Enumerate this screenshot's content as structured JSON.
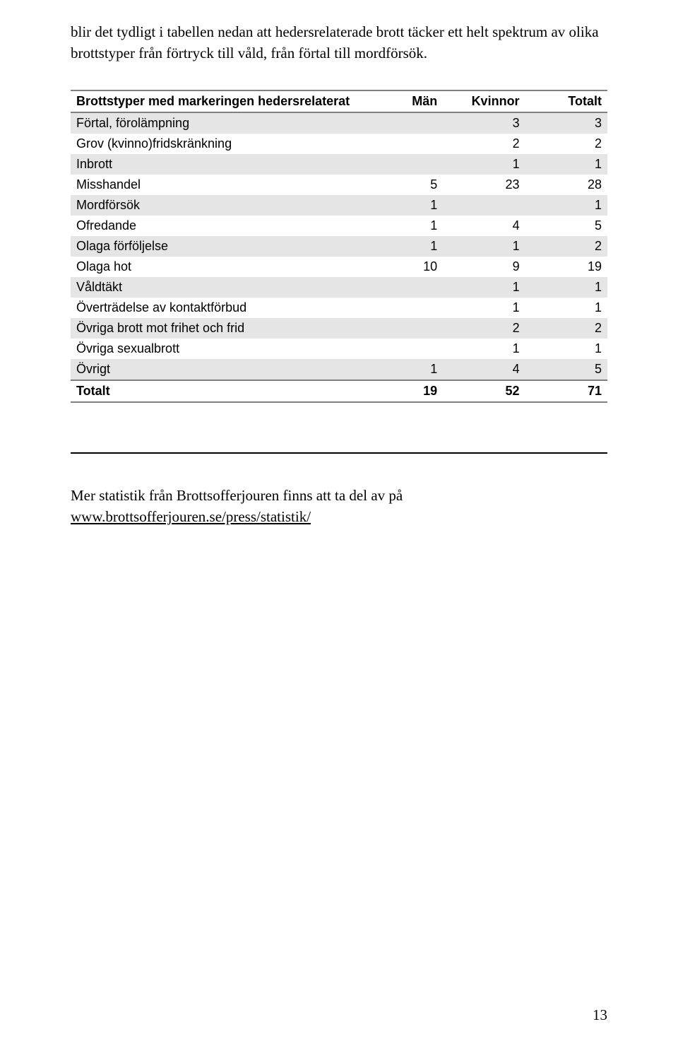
{
  "intro_text": "blir det tydligt i tabellen nedan att hedersrelaterade brott täcker ett helt spektrum av olika brottstyper från förtryck till våld, från förtal till mordförsök.",
  "table": {
    "type": "table",
    "header_label": "Brottstyper med markeringen hedersrelaterat",
    "columns": [
      "Män",
      "Kvinnor",
      "Totalt"
    ],
    "rows": [
      {
        "label": "Förtal, förolämpning",
        "man": "",
        "kvinnor": "3",
        "totalt": "3"
      },
      {
        "label": "Grov (kvinno)fridskränkning",
        "man": "",
        "kvinnor": "2",
        "totalt": "2"
      },
      {
        "label": "Inbrott",
        "man": "",
        "kvinnor": "1",
        "totalt": "1"
      },
      {
        "label": "Misshandel",
        "man": "5",
        "kvinnor": "23",
        "totalt": "28"
      },
      {
        "label": "Mordförsök",
        "man": "1",
        "kvinnor": "",
        "totalt": "1"
      },
      {
        "label": "Ofredande",
        "man": "1",
        "kvinnor": "4",
        "totalt": "5"
      },
      {
        "label": "Olaga förföljelse",
        "man": "1",
        "kvinnor": "1",
        "totalt": "2"
      },
      {
        "label": "Olaga hot",
        "man": "10",
        "kvinnor": "9",
        "totalt": "19"
      },
      {
        "label": "Våldtäkt",
        "man": "",
        "kvinnor": "1",
        "totalt": "1"
      },
      {
        "label": "Överträdelse av kontaktförbud",
        "man": "",
        "kvinnor": "1",
        "totalt": "1"
      },
      {
        "label": "Övriga brott mot frihet och frid",
        "man": "",
        "kvinnor": "2",
        "totalt": "2"
      },
      {
        "label": "Övriga sexualbrott",
        "man": "",
        "kvinnor": "1",
        "totalt": "1"
      },
      {
        "label": "Övrigt",
        "man": "1",
        "kvinnor": "4",
        "totalt": "5"
      }
    ],
    "totals": {
      "label": "Totalt",
      "man": "19",
      "kvinnor": "52",
      "totalt": "71"
    },
    "shade_color": "#e5e5e5",
    "border_color": "#7f7f7f",
    "font_family_table": "Verdana",
    "font_size_table": 18,
    "font_family_body": "Georgia",
    "font_size_body": 21
  },
  "outro_prefix": "Mer statistik från Brottsofferjouren finns att ta del av på ",
  "outro_link": "www.brottsofferjouren.se/press/statistik/",
  "page_number": "13"
}
